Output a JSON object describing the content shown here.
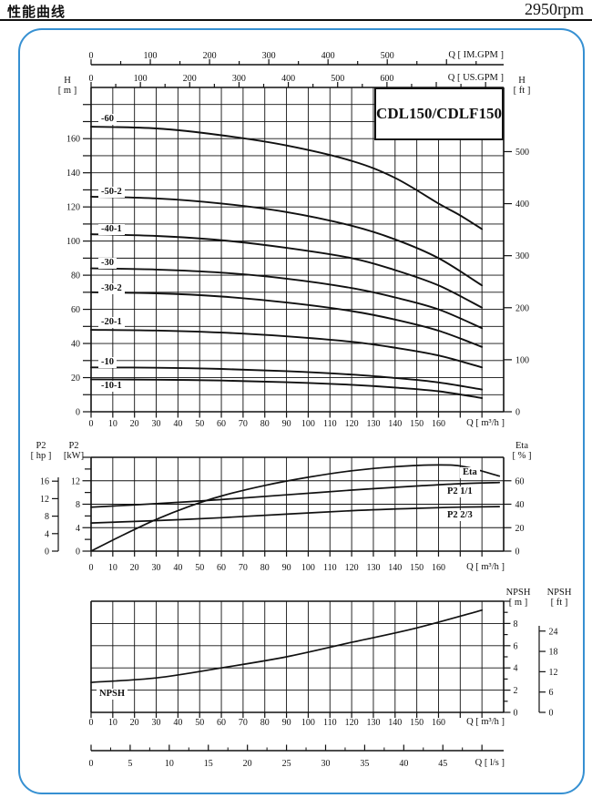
{
  "header": {
    "title_cn": "性能曲线",
    "rpm": "2950rpm"
  },
  "panel": {
    "border_color": "#3690d2"
  },
  "labels": {
    "main_title": "CDL150/CDLF150",
    "h_left": {
      "line1": "H",
      "line2": "[ m ]"
    },
    "h_right": {
      "line1": "H",
      "line2": "[ ft ]"
    },
    "q_im": "Q [ IM.GPM ]",
    "q_us": "Q [ US.GPM ]",
    "q_m3h": "Q [ m³/h ]",
    "q_ls": "Q [ l/s ]",
    "p2_hp": {
      "line1": "P2",
      "line2": "[ hp ]"
    },
    "p2_kw": {
      "line1": "P2",
      "line2": "[kW]"
    },
    "eta": {
      "line1": "Eta",
      "line2": "[ % ]"
    },
    "npsh_m": {
      "line1": "NPSH",
      "line2": "[ m ]"
    },
    "npsh_ft": {
      "line1": "NPSH",
      "line2": "[ ft ]"
    },
    "chip_eta": "Eta",
    "chip_p2_11": "P2  1/1",
    "chip_p2_23": "P2  2/3",
    "chip_npsh": "NPSH"
  },
  "chart_data": [
    {
      "id": "head",
      "type": "line",
      "title": "CDL150/CDLF150",
      "x_axis": {
        "label": "Q [ m³/h ]",
        "range": [
          0,
          190
        ],
        "grid_step": 10,
        "ticks": [
          0,
          10,
          20,
          30,
          40,
          50,
          60,
          70,
          80,
          90,
          100,
          110,
          120,
          130,
          140,
          150,
          160
        ]
      },
      "y_axis_m": {
        "label": "H [ m ]",
        "range": [
          0,
          190
        ],
        "grid_step": 10,
        "ticks": [
          0,
          20,
          40,
          60,
          80,
          100,
          120,
          140,
          160
        ]
      },
      "y_axis_ft": {
        "label": "H [ ft ]",
        "ticks": [
          0,
          100,
          200,
          300,
          400,
          500
        ]
      },
      "top_axis_im": {
        "label": "Q [ IM.GPM ]",
        "ticks": [
          0,
          100,
          200,
          300,
          400,
          500
        ]
      },
      "top_axis_us": {
        "label": "Q [ US.GPM ]",
        "ticks": [
          0,
          100,
          200,
          300,
          400,
          500,
          600
        ]
      },
      "series": [
        {
          "name": "-60",
          "points": [
            [
              0,
              167
            ],
            [
              30,
              166
            ],
            [
              60,
              162
            ],
            [
              90,
              156
            ],
            [
              120,
              147
            ],
            [
              140,
              137
            ],
            [
              160,
              122
            ],
            [
              170,
              115
            ],
            [
              180,
              107
            ]
          ]
        },
        {
          "name": "-50-2",
          "points": [
            [
              0,
              126
            ],
            [
              30,
              125
            ],
            [
              60,
              122
            ],
            [
              90,
              117
            ],
            [
              120,
              109
            ],
            [
              140,
              101
            ],
            [
              160,
              90
            ],
            [
              180,
              74
            ]
          ]
        },
        {
          "name": "-40-1",
          "points": [
            [
              0,
              104
            ],
            [
              30,
              103
            ],
            [
              60,
              100.5
            ],
            [
              90,
              96
            ],
            [
              120,
              90
            ],
            [
              140,
              83
            ],
            [
              160,
              74
            ],
            [
              180,
              61
            ]
          ]
        },
        {
          "name": "-30",
          "points": [
            [
              0,
              84
            ],
            [
              30,
              83.3
            ],
            [
              60,
              81.5
            ],
            [
              90,
              78
            ],
            [
              120,
              72.5
            ],
            [
              140,
              67
            ],
            [
              160,
              60
            ],
            [
              180,
              49
            ]
          ]
        },
        {
          "name": "-30-2",
          "points": [
            [
              0,
              70
            ],
            [
              30,
              69.4
            ],
            [
              60,
              67.5
            ],
            [
              90,
              64
            ],
            [
              120,
              59
            ],
            [
              140,
              54
            ],
            [
              160,
              47.5
            ],
            [
              180,
              38
            ]
          ]
        },
        {
          "name": "-20-1",
          "points": [
            [
              0,
              48
            ],
            [
              30,
              47.6
            ],
            [
              60,
              46.4
            ],
            [
              90,
              44.2
            ],
            [
              120,
              41
            ],
            [
              140,
              37.5
            ],
            [
              160,
              33
            ],
            [
              180,
              26
            ]
          ]
        },
        {
          "name": "-10",
          "points": [
            [
              0,
              26
            ],
            [
              30,
              25.8
            ],
            [
              60,
              25.1
            ],
            [
              90,
              23.8
            ],
            [
              120,
              21.8
            ],
            [
              140,
              19.8
            ],
            [
              160,
              17.2
            ],
            [
              180,
              13
            ]
          ]
        },
        {
          "name": "-10-1",
          "points": [
            [
              0,
              19
            ],
            [
              30,
              18.8
            ],
            [
              60,
              18.3
            ],
            [
              90,
              17.3
            ],
            [
              120,
              15.8
            ],
            [
              140,
              14.2
            ],
            [
              160,
              12
            ],
            [
              180,
              8
            ]
          ]
        }
      ]
    },
    {
      "id": "power",
      "type": "line",
      "x_axis": {
        "label": "Q [ m³/h ]",
        "range": [
          0,
          190
        ],
        "grid_step": 10,
        "ticks": [
          0,
          10,
          20,
          30,
          40,
          50,
          60,
          70,
          80,
          90,
          100,
          110,
          120,
          130,
          140,
          150,
          160
        ]
      },
      "y_axis_kw": {
        "label": "P2 [kW]",
        "range": [
          0,
          16
        ],
        "grid_step": 4,
        "ticks": [
          0,
          4,
          8,
          12
        ]
      },
      "y_axis_hp": {
        "label": "P2 [ hp ]",
        "ticks": [
          0,
          4,
          8,
          12,
          16
        ]
      },
      "y_axis_eta": {
        "label": "Eta [ % ]",
        "range": [
          0,
          80
        ],
        "ticks": [
          0,
          20,
          40,
          60
        ]
      },
      "series": [
        {
          "name": "P2  1/1",
          "scale": "kw",
          "points": [
            [
              0,
              7.5
            ],
            [
              30,
              8.1
            ],
            [
              60,
              8.8
            ],
            [
              90,
              9.6
            ],
            [
              120,
              10.4
            ],
            [
              150,
              11.1
            ],
            [
              170,
              11.5
            ],
            [
              188,
              11.7
            ]
          ]
        },
        {
          "name": "P2  2/3",
          "scale": "kw",
          "points": [
            [
              0,
              4.8
            ],
            [
              30,
              5.2
            ],
            [
              60,
              5.7
            ],
            [
              90,
              6.3
            ],
            [
              120,
              6.9
            ],
            [
              150,
              7.3
            ],
            [
              170,
              7.5
            ],
            [
              188,
              7.6
            ]
          ]
        },
        {
          "name": "Eta",
          "scale": "eta",
          "points": [
            [
              0,
              0
            ],
            [
              15,
              14
            ],
            [
              30,
              27
            ],
            [
              45,
              38
            ],
            [
              60,
              47
            ],
            [
              80,
              56
            ],
            [
              100,
              63
            ],
            [
              120,
              68.5
            ],
            [
              140,
              72
            ],
            [
              160,
              73.5
            ],
            [
              172,
              72
            ],
            [
              188,
              64
            ]
          ]
        }
      ]
    },
    {
      "id": "npsh",
      "type": "line",
      "x_axis": {
        "label": "Q [ m³/h ]",
        "range": [
          0,
          190
        ],
        "grid_step": 10,
        "ticks": [
          0,
          10,
          20,
          30,
          40,
          50,
          60,
          70,
          80,
          90,
          100,
          110,
          120,
          130,
          140,
          150,
          160
        ]
      },
      "y_axis_m": {
        "label": "NPSH [ m ]",
        "range": [
          0,
          10
        ],
        "grid_step": 2,
        "ticks": [
          0,
          2,
          4,
          6,
          8
        ]
      },
      "y_axis_ft": {
        "label": "NPSH [ ft ]",
        "ticks": [
          0,
          6,
          12,
          18,
          24
        ]
      },
      "series": [
        {
          "name": "NPSH",
          "points": [
            [
              0,
              2.7
            ],
            [
              30,
              3.1
            ],
            [
              60,
              4.0
            ],
            [
              90,
              5.0
            ],
            [
              120,
              6.3
            ],
            [
              150,
              7.6
            ],
            [
              180,
              9.2
            ]
          ]
        }
      ]
    }
  ],
  "ls_axis": {
    "label": "Q [ l/s ]",
    "ticks": [
      0,
      5,
      10,
      15,
      20,
      25,
      30,
      35,
      40,
      45
    ]
  }
}
